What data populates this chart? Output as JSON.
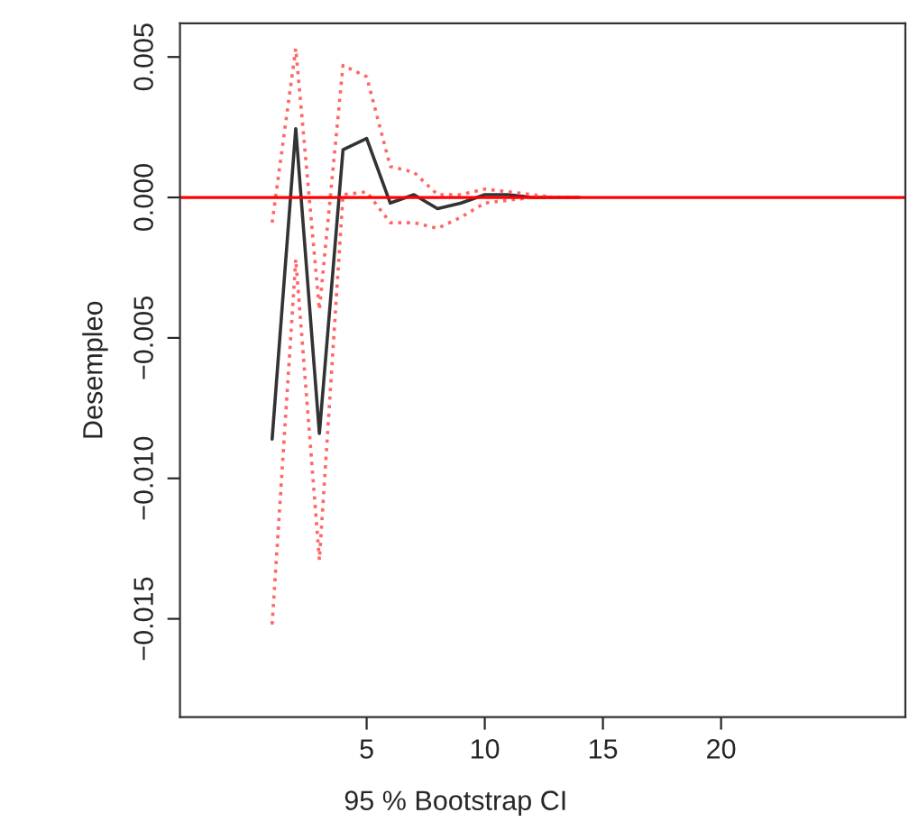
{
  "chart_data": {
    "type": "line",
    "xlabel": "95 % Bootstrap CI",
    "ylabel": "Desempleo",
    "x": [
      1,
      2,
      3,
      4,
      5,
      6,
      7,
      8,
      9,
      10,
      11,
      12,
      13,
      14
    ],
    "series": [
      {
        "color": "#333333",
        "line_style": "solid",
        "values": [
          -0.0086,
          0.00245,
          -0.0084,
          0.0017,
          0.0021,
          -0.0002,
          0.0001,
          -0.0004,
          -0.0002,
          0.0001,
          0.0001,
          0,
          0,
          0
        ]
      },
      {
        "color": "#ff6666",
        "line_style": "dotted",
        "values": [
          -0.0009,
          0.0053,
          -0.004,
          0.0047,
          0.0043,
          0.0011,
          0.0009,
          0.0001,
          0.0001,
          0.0003,
          0.0002,
          0.0001,
          0,
          0
        ]
      },
      {
        "color": "#ff6666",
        "line_style": "dotted",
        "values": [
          -0.0152,
          -0.0022,
          -0.0129,
          0.0001,
          0.0002,
          -0.0009,
          -0.0009,
          -0.0011,
          -0.0007,
          -0.0002,
          -0.0001,
          0,
          0,
          0
        ]
      }
    ],
    "xlim": [
      -2.9,
      27.8
    ],
    "ylim": [
      -0.0185,
      0.0062
    ],
    "xticks": [
      5,
      10,
      15,
      20
    ],
    "yticks": [
      {
        "value": -0.015,
        "label": "−0.015"
      },
      {
        "value": -0.01,
        "label": "−0.010"
      },
      {
        "value": -0.005,
        "label": "−0.005"
      },
      {
        "value": 0,
        "label": "0.000"
      },
      {
        "value": 0.005,
        "label": "0.005"
      }
    ],
    "ref_lines": [
      {
        "axis": "y",
        "value": 0,
        "color": "#ff0000",
        "line_style": "solid"
      }
    ],
    "grid": false,
    "legend": false,
    "marker": "none"
  }
}
